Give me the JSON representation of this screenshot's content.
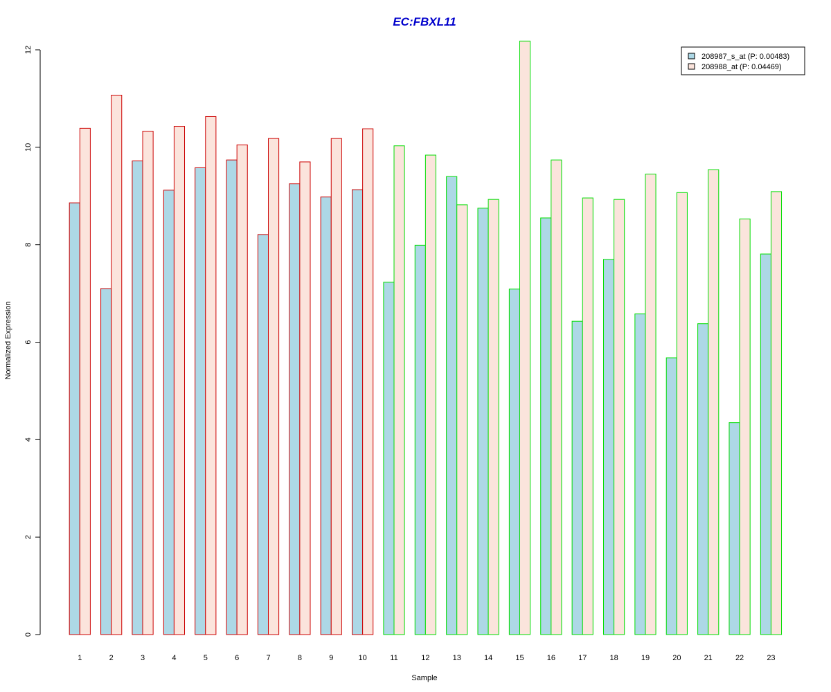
{
  "chart_data": {
    "type": "bar",
    "title": "EC:FBXL11",
    "xlabel": "Sample",
    "ylabel": "Normalized Expression",
    "ylim": [
      0,
      12
    ],
    "yticks": [
      0,
      2,
      4,
      6,
      8,
      10,
      12
    ],
    "categories": [
      "1",
      "2",
      "3",
      "4",
      "5",
      "6",
      "7",
      "8",
      "9",
      "10",
      "11",
      "12",
      "13",
      "14",
      "15",
      "16",
      "17",
      "18",
      "19",
      "20",
      "21",
      "22",
      "23"
    ],
    "series": [
      {
        "name": "208987_s_at (P: 0.00483)",
        "fill": "#add8e6",
        "values": [
          8.86,
          7.1,
          9.72,
          9.12,
          9.58,
          9.74,
          8.21,
          9.25,
          8.98,
          9.13,
          7.23,
          7.99,
          9.4,
          8.75,
          7.09,
          8.55,
          6.43,
          7.7,
          6.58,
          5.68,
          6.38,
          4.35,
          7.81
        ]
      },
      {
        "name": "208988_at (P: 0.04469)",
        "fill": "#fbe4dc",
        "values": [
          10.39,
          11.07,
          10.33,
          10.43,
          10.63,
          10.05,
          10.18,
          9.7,
          10.18,
          10.38,
          10.03,
          9.84,
          8.82,
          8.93,
          12.18,
          9.74,
          8.96,
          8.93,
          9.45,
          9.07,
          9.54,
          8.53,
          9.09
        ]
      }
    ],
    "group_borders": [
      "#cc0000",
      "#cc0000",
      "#cc0000",
      "#cc0000",
      "#cc0000",
      "#cc0000",
      "#cc0000",
      "#cc0000",
      "#cc0000",
      "#cc0000",
      "#00dd00",
      "#00dd00",
      "#00dd00",
      "#00dd00",
      "#00dd00",
      "#00dd00",
      "#00dd00",
      "#00dd00",
      "#00dd00",
      "#00dd00",
      "#00dd00",
      "#00dd00",
      "#00dd00"
    ],
    "legend_position": "top-right",
    "grid": false
  }
}
